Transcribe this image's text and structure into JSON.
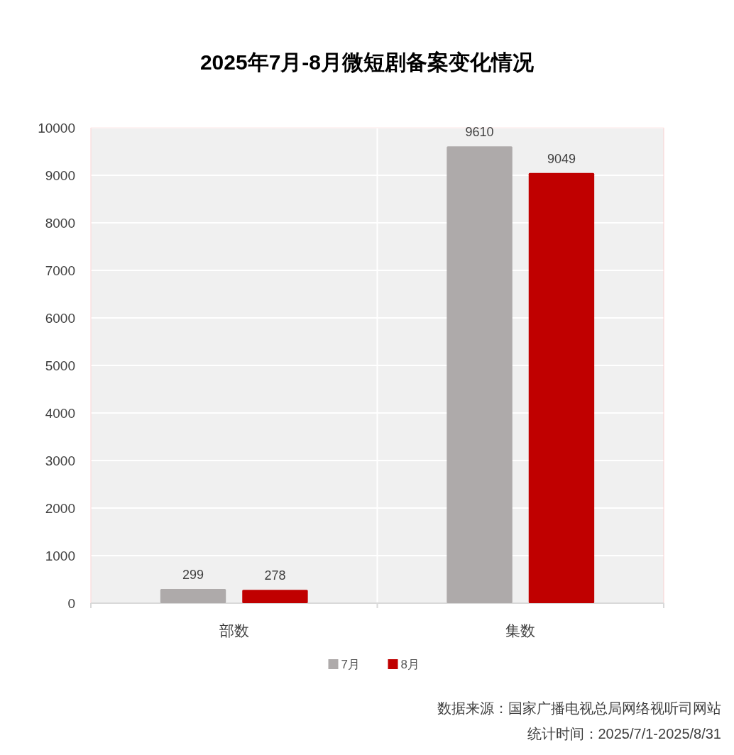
{
  "chart_data": {
    "type": "bar",
    "title": "2025年7月-8月微短剧备案变化情况",
    "categories": [
      "部数",
      "集数"
    ],
    "series": [
      {
        "name": "7月",
        "color": "#aeaaaa",
        "values": [
          299,
          9610
        ]
      },
      {
        "name": "8月",
        "color": "#c00000",
        "values": [
          278,
          9049
        ]
      }
    ],
    "ylim": [
      0,
      10000
    ],
    "yticks": [
      0,
      1000,
      2000,
      3000,
      4000,
      5000,
      6000,
      7000,
      8000,
      9000,
      10000
    ],
    "grid": true,
    "legend": "bottom",
    "data_labels": true,
    "annotations": [
      "数据来源：国家广播电视总局网络视听司网站",
      "统计时间：2025/7/1-2025/8/31"
    ]
  }
}
